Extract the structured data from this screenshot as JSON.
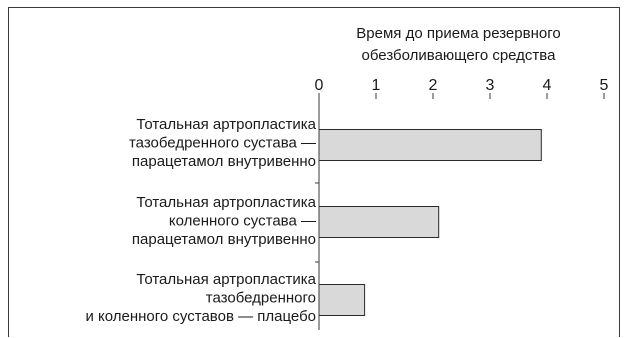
{
  "chart_data": {
    "type": "bar",
    "orientation": "horizontal",
    "title": "",
    "xlabel": [
      "Время до приема резервного",
      "обезболивающего средства"
    ],
    "ylabel": "",
    "xlim": [
      0,
      5
    ],
    "xticks": [
      0,
      1,
      2,
      3,
      4,
      5
    ],
    "categories": [
      [
        "Тотальная артропластика",
        "тазобедренного сустава —",
        "парацетамол внутривенно"
      ],
      [
        "Тотальная артропластика",
        "коленного сустава —",
        "парацетамол внутривенно"
      ],
      [
        "Тотальная артропластика",
        "тазобедренного",
        "и коленного суставов — плацебо"
      ]
    ],
    "values": [
      3.9,
      2.1,
      0.8
    ],
    "bar_color": "#d9d9d9",
    "grid": false,
    "legend": "none"
  }
}
